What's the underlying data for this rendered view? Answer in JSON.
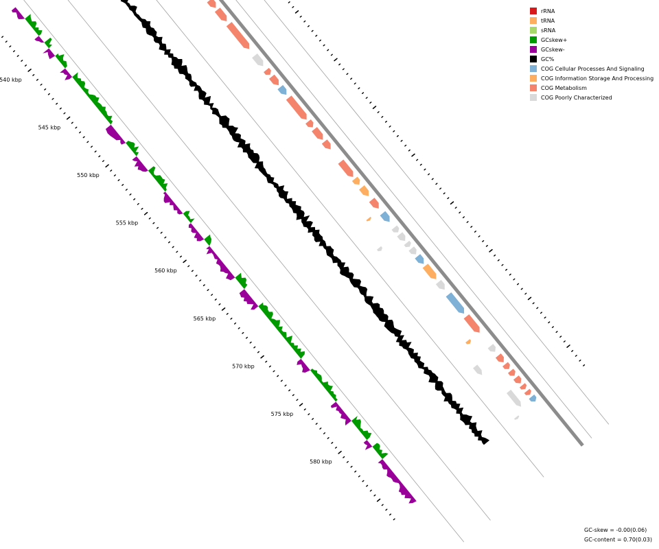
{
  "legend": [
    {
      "label": "rRNA",
      "color": "#d7191c"
    },
    {
      "label": "tRNA",
      "color": "#fdae61"
    },
    {
      "label": "sRNA",
      "color": "#a6d96a"
    },
    {
      "label": "GCskew+",
      "color": "#009900"
    },
    {
      "label": "GCskew-",
      "color": "#990099"
    },
    {
      "label": "GC%",
      "color": "#000000"
    },
    {
      "label": "COG Cellular Processes And Signaling",
      "color": "#7fb1d6"
    },
    {
      "label": "COG Information Storage And Processing",
      "color": "#fdae61"
    },
    {
      "label": "COG Metabolism",
      "color": "#f4846c"
    },
    {
      "label": "COG Poorly Characterized",
      "color": "#d9d9d9"
    }
  ],
  "tick_labels": [
    "540 kbp",
    "545 kbp",
    "550 kbp",
    "555 kbp",
    "560 kbp",
    "565 kbp",
    "570 kbp",
    "575 kbp",
    "580 kbp"
  ],
  "tick_kbp": [
    540,
    545,
    550,
    555,
    560,
    565,
    570,
    575,
    580
  ],
  "view_range_kbp": [
    535.3,
    587
  ],
  "stats": {
    "gc_skew": "GC-skew = -0.00(0.06)",
    "gc_content": "GC-content = 0.70(0.03)"
  },
  "features": {
    "forward": [
      {
        "start": 535.8,
        "end": 537.2,
        "cog": "Metabolism"
      },
      {
        "start": 537.4,
        "end": 538.7,
        "cog": "Information Storage And Processing"
      },
      {
        "start": 538.9,
        "end": 539.4,
        "cog": "Poorly Characterized"
      },
      {
        "start": 539.6,
        "end": 540.6,
        "cog": "Metabolism"
      },
      {
        "start": 540.9,
        "end": 542.3,
        "cog": "Cellular Processes And Signaling"
      },
      {
        "start": 542.6,
        "end": 543.2,
        "cog": "Metabolism"
      },
      {
        "start": 543.7,
        "end": 544.1,
        "cog": "Metabolism"
      },
      {
        "start": 544.3,
        "end": 544.6,
        "cog": "Metabolism"
      },
      {
        "start": 544.8,
        "end": 545.6,
        "cog": "Metabolism"
      },
      {
        "start": 545.8,
        "end": 547.0,
        "cog": "Metabolism"
      },
      {
        "start": 547.3,
        "end": 549.9,
        "cog": "Metabolism"
      },
      {
        "start": 550.6,
        "end": 551.7,
        "cog": "Poorly Characterized"
      },
      {
        "start": 552.1,
        "end": 552.6,
        "cog": "Metabolism"
      },
      {
        "start": 552.8,
        "end": 553.7,
        "cog": "Metabolism"
      },
      {
        "start": 553.9,
        "end": 554.7,
        "cog": "Cellular Processes And Signaling"
      },
      {
        "start": 555.0,
        "end": 557.3,
        "cog": "Metabolism"
      },
      {
        "start": 557.5,
        "end": 558.1,
        "cog": "Metabolism"
      },
      {
        "start": 558.3,
        "end": 559.4,
        "cog": "Metabolism"
      },
      {
        "start": 559.6,
        "end": 560.4,
        "cog": "Metabolism"
      },
      {
        "start": 561.7,
        "end": 563.3,
        "cog": "Metabolism"
      },
      {
        "start": 563.5,
        "end": 564.1,
        "cog": "Information Storage And Processing"
      },
      {
        "start": 564.4,
        "end": 565.3,
        "cog": "Information Storage And Processing"
      },
      {
        "start": 565.7,
        "end": 566.6,
        "cog": "Metabolism"
      },
      {
        "start": 567.1,
        "end": 568.0,
        "cog": "Cellular Processes And Signaling"
      },
      {
        "start": 568.6,
        "end": 569.1,
        "cog": "Poorly Characterized"
      },
      {
        "start": 569.3,
        "end": 570.0,
        "cog": "Poorly Characterized"
      },
      {
        "start": 570.2,
        "end": 570.6,
        "cog": "Poorly Characterized"
      },
      {
        "start": 570.8,
        "end": 571.4,
        "cog": "Poorly Characterized"
      },
      {
        "start": 571.6,
        "end": 572.4,
        "cog": "Cellular Processes And Signaling"
      },
      {
        "start": 572.6,
        "end": 574.0,
        "cog": "Information Storage And Processing"
      },
      {
        "start": 574.3,
        "end": 575.1,
        "cog": "Poorly Characterized"
      },
      {
        "start": 575.6,
        "end": 577.6,
        "cog": "Cellular Processes And Signaling"
      },
      {
        "start": 577.9,
        "end": 579.6,
        "cog": "Metabolism"
      },
      {
        "start": 581.0,
        "end": 581.6,
        "cog": "Poorly Characterized"
      },
      {
        "start": 582.0,
        "end": 582.7,
        "cog": "Metabolism"
      },
      {
        "start": 582.9,
        "end": 583.4,
        "cog": "Metabolism"
      },
      {
        "start": 583.6,
        "end": 584.1,
        "cog": "Metabolism"
      },
      {
        "start": 584.3,
        "end": 584.9,
        "cog": "Metabolism"
      },
      {
        "start": 585.1,
        "end": 585.5,
        "cog": "Metabolism"
      },
      {
        "start": 585.7,
        "end": 586.1,
        "cog": "Metabolism"
      },
      {
        "start": 586.3,
        "end": 586.8,
        "cog": "Cellular Processes And Signaling"
      }
    ],
    "reverse": [
      {
        "start": 541.1,
        "end": 541.4,
        "cog": "Poorly Characterized"
      },
      {
        "start": 566.7,
        "end": 566.9,
        "cog": "tRNA"
      },
      {
        "start": 569.1,
        "end": 569.4,
        "cog": "Poorly Characterized"
      },
      {
        "start": 579.5,
        "end": 579.8,
        "cog": "tRNA"
      },
      {
        "start": 581.5,
        "end": 582.4,
        "cog": "Poorly Characterized"
      },
      {
        "start": 584.8,
        "end": 586.4,
        "cog": "Poorly Characterized"
      },
      {
        "start": 586.8,
        "end": 587.0,
        "cog": "Poorly Characterized"
      }
    ]
  },
  "gc_skew_profile": [
    {
      "start": 535.3,
      "end": 536.5,
      "sign": "-"
    },
    {
      "start": 536.5,
      "end": 538.3,
      "sign": "+"
    },
    {
      "start": 538.3,
      "end": 539.0,
      "sign": "-"
    },
    {
      "start": 539.0,
      "end": 539.6,
      "sign": "+"
    },
    {
      "start": 539.6,
      "end": 540.4,
      "sign": "-"
    },
    {
      "start": 540.4,
      "end": 541.7,
      "sign": "+"
    },
    {
      "start": 541.7,
      "end": 542.6,
      "sign": "-"
    },
    {
      "start": 542.6,
      "end": 547.6,
      "sign": "+"
    },
    {
      "start": 547.6,
      "end": 549.5,
      "sign": "-"
    },
    {
      "start": 549.5,
      "end": 550.9,
      "sign": "+"
    },
    {
      "start": 550.9,
      "end": 552.4,
      "sign": "-"
    },
    {
      "start": 552.4,
      "end": 554.6,
      "sign": "+"
    },
    {
      "start": 554.6,
      "end": 556.9,
      "sign": "-"
    },
    {
      "start": 556.9,
      "end": 557.9,
      "sign": "+"
    },
    {
      "start": 557.9,
      "end": 559.6,
      "sign": "-"
    },
    {
      "start": 559.6,
      "end": 560.3,
      "sign": "+"
    },
    {
      "start": 560.3,
      "end": 563.6,
      "sign": "-"
    },
    {
      "start": 563.6,
      "end": 564.8,
      "sign": "+"
    },
    {
      "start": 564.8,
      "end": 566.6,
      "sign": "-"
    },
    {
      "start": 566.6,
      "end": 572.1,
      "sign": "+"
    },
    {
      "start": 572.1,
      "end": 573.3,
      "sign": "-"
    },
    {
      "start": 573.3,
      "end": 576.6,
      "sign": "+"
    },
    {
      "start": 576.6,
      "end": 578.6,
      "sign": "-"
    },
    {
      "start": 578.6,
      "end": 580.6,
      "sign": "+"
    },
    {
      "start": 580.6,
      "end": 581.3,
      "sign": "-"
    },
    {
      "start": 581.3,
      "end": 582.6,
      "sign": "+"
    },
    {
      "start": 582.6,
      "end": 587.0,
      "sign": "-"
    }
  ]
}
